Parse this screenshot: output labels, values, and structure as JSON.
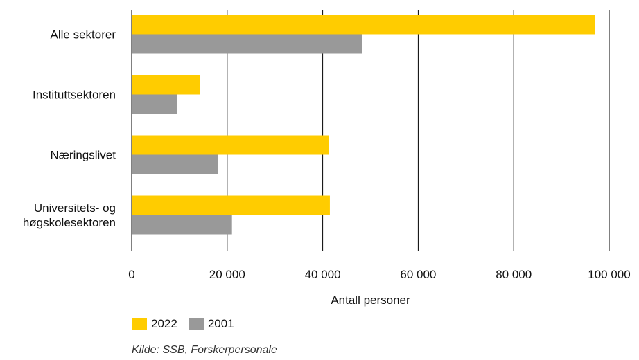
{
  "colors": {
    "series_2022": "#FFCC00",
    "series_2001": "#999999",
    "grid": "#000000"
  },
  "legend": {
    "item_2022": "2022",
    "item_2001": "2001"
  },
  "source": "Kilde: SSB, Forskerpersonale",
  "chart_data": {
    "type": "bar",
    "orientation": "horizontal",
    "categories": [
      [
        "Alle sektorer"
      ],
      [
        "Instituttsektoren"
      ],
      [
        "Næringslivet"
      ],
      [
        "Universitets- og",
        "høgskolesektoren"
      ]
    ],
    "series": [
      {
        "name": "2022",
        "values": [
          97000,
          14300,
          41300,
          41500
        ]
      },
      {
        "name": "2001",
        "values": [
          48300,
          9500,
          18100,
          21000
        ]
      }
    ],
    "xlabel": "Antall personer",
    "ylabel": "",
    "xlim": [
      0,
      100000
    ],
    "x_ticks": [
      0,
      20000,
      40000,
      60000,
      80000,
      100000
    ],
    "x_tick_labels": [
      "0",
      "20 000",
      "40 000",
      "60 000",
      "80 000",
      "100 000"
    ],
    "grid": "vertical",
    "legend_position": "bottom-left"
  }
}
